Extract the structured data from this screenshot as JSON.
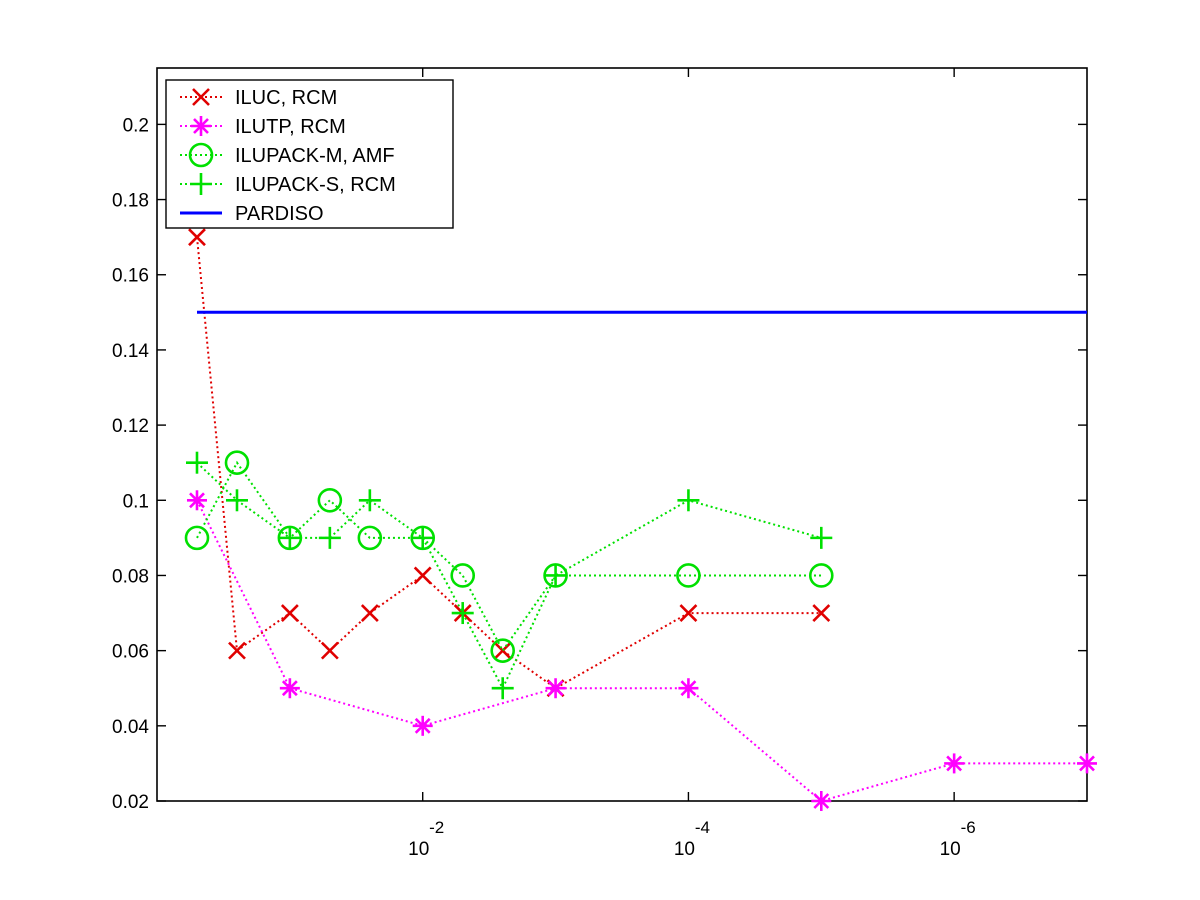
{
  "chart_data": {
    "type": "line",
    "title": "",
    "xlabel": "",
    "ylabel": "",
    "x_scale": "log",
    "x_direction": "reversed",
    "xlim": [
      1,
      1e-07
    ],
    "ylim": [
      0.02,
      0.215
    ],
    "xticks": [
      {
        "value": 0.01,
        "base": "10",
        "exponent": "-2"
      },
      {
        "value": 0.0001,
        "base": "10",
        "exponent": "-4"
      },
      {
        "value": 1e-06,
        "base": "10",
        "exponent": "-6"
      }
    ],
    "yticks": [
      {
        "value": 0.02,
        "label": "0.02"
      },
      {
        "value": 0.04,
        "label": "0.04"
      },
      {
        "value": 0.06,
        "label": "0.06"
      },
      {
        "value": 0.08,
        "label": "0.08"
      },
      {
        "value": 0.1,
        "label": "0.1"
      },
      {
        "value": 0.12,
        "label": "0.12"
      },
      {
        "value": 0.14,
        "label": "0.14"
      },
      {
        "value": 0.16,
        "label": "0.16"
      },
      {
        "value": 0.18,
        "label": "0.18"
      },
      {
        "value": 0.2,
        "label": "0.2"
      }
    ],
    "grid": false,
    "legend_position": "top-left",
    "series": [
      {
        "name": "ILUC, RCM",
        "color": "#e00000",
        "marker": "x",
        "line_style": "dotted",
        "x": [
          0.5,
          0.25,
          0.1,
          0.05,
          0.025,
          0.01,
          0.005,
          0.0025,
          0.001,
          0.0001,
          1e-05
        ],
        "y": [
          0.17,
          0.06,
          0.07,
          0.06,
          0.07,
          0.08,
          0.07,
          0.06,
          0.05,
          0.07,
          0.07
        ]
      },
      {
        "name": "ILUTP, RCM",
        "color": "#ff00ff",
        "marker": "asterisk",
        "line_style": "dotted",
        "x": [
          0.5,
          0.1,
          0.01,
          0.001,
          0.0001,
          1e-05,
          1e-06,
          1e-07
        ],
        "y": [
          0.1,
          0.05,
          0.04,
          0.05,
          0.05,
          0.02,
          0.03,
          0.03
        ]
      },
      {
        "name": "ILUPACK-M, AMF",
        "color": "#00e000",
        "marker": "circle",
        "line_style": "dotted",
        "x": [
          0.5,
          0.25,
          0.1,
          0.05,
          0.025,
          0.01,
          0.005,
          0.0025,
          0.001,
          0.0001,
          1e-05
        ],
        "y": [
          0.09,
          0.11,
          0.09,
          0.1,
          0.09,
          0.09,
          0.08,
          0.06,
          0.08,
          0.08,
          0.08
        ]
      },
      {
        "name": "ILUPACK-S, RCM",
        "color": "#00e000",
        "marker": "plus",
        "line_style": "dotted",
        "x": [
          0.5,
          0.25,
          0.1,
          0.05,
          0.025,
          0.01,
          0.005,
          0.0025,
          0.001,
          0.0001,
          1e-05
        ],
        "y": [
          0.11,
          0.1,
          0.09,
          0.09,
          0.1,
          0.09,
          0.07,
          0.05,
          0.08,
          0.1,
          0.09
        ]
      },
      {
        "name": "PARDISO",
        "color": "#0000ff",
        "marker": "none",
        "line_style": "solid",
        "x": [
          0.5,
          1e-07
        ],
        "y": [
          0.15,
          0.15
        ]
      }
    ]
  }
}
